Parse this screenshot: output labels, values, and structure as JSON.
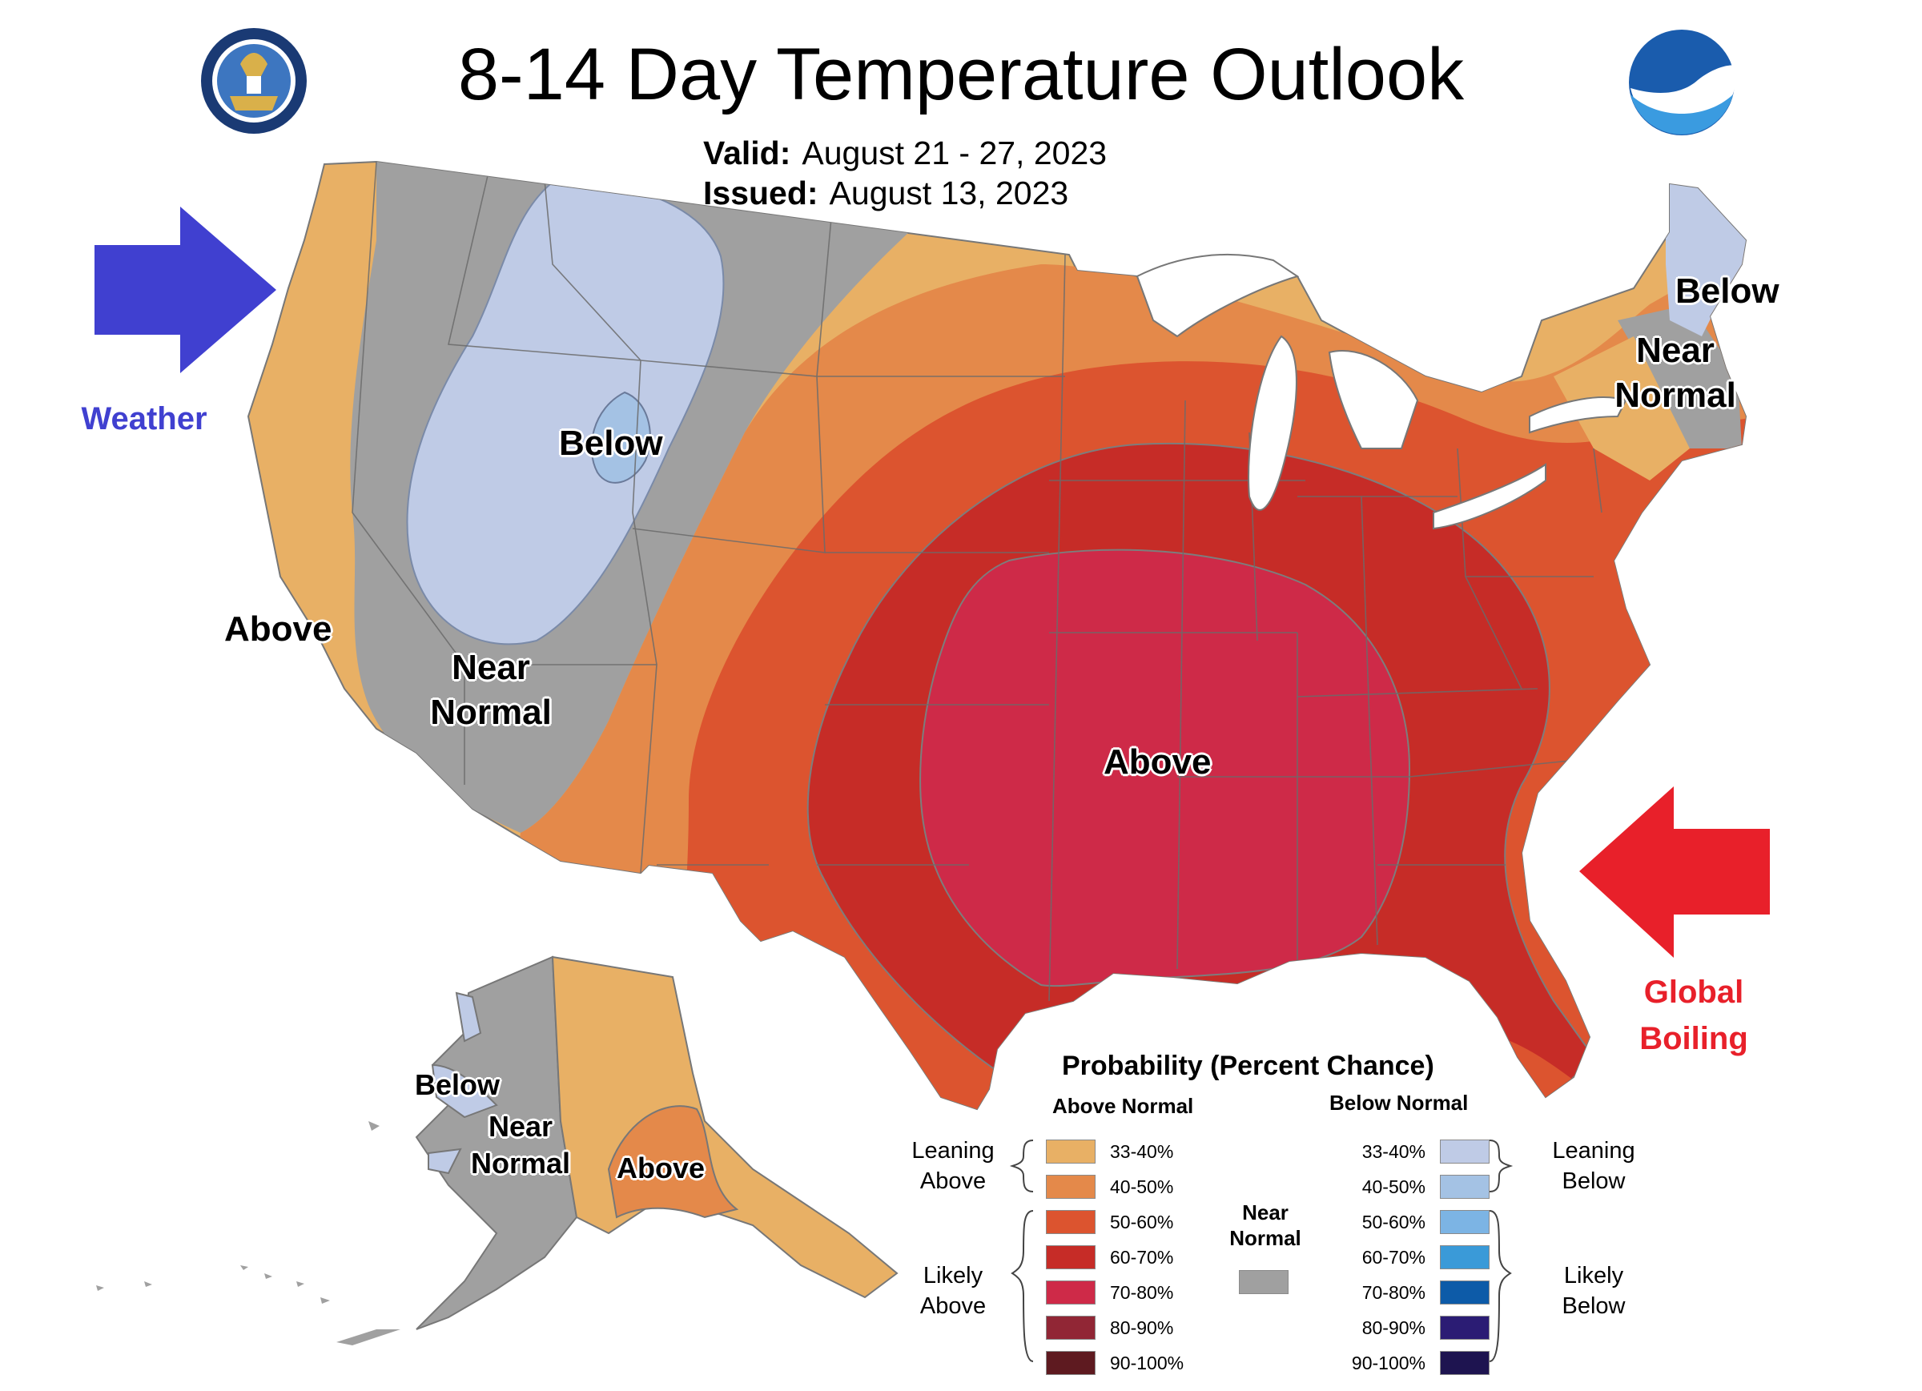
{
  "header": {
    "title": "8-14 Day Temperature Outlook",
    "valid_label": "Valid:",
    "valid_value": "August 21 - 27, 2023",
    "issued_label": "Issued:",
    "issued_value": "August 13, 2023"
  },
  "logos": {
    "left": "department-of-commerce-seal",
    "right": "noaa-logo"
  },
  "annotations": {
    "left_text": "Weather",
    "left_arrow_color": "#4040d0",
    "right_text_line1": "Global",
    "right_text_line2": "Boiling",
    "right_arrow_color": "#e8202a"
  },
  "map_labels": {
    "west_coast": "Above",
    "great_basin_line1": "Near",
    "great_basin_line2": "Normal",
    "northern_rockies": "Below",
    "central": "Above",
    "maine": "Below",
    "new_england_line1": "Near",
    "new_england_line2": "Normal",
    "alaska_west": "Below",
    "alaska_middle_line1": "Near",
    "alaska_middle_line2": "Normal",
    "alaska_south": "Above"
  },
  "legend": {
    "title": "Probability (Percent Chance)",
    "above_header": "Above Normal",
    "below_header": "Below Normal",
    "leaning_above_1": "Leaning",
    "leaning_above_2": "Above",
    "likely_above_1": "Likely",
    "likely_above_2": "Above",
    "leaning_below_1": "Leaning",
    "leaning_below_2": "Below",
    "likely_below_1": "Likely",
    "likely_below_2": "Below",
    "near_normal_1": "Near",
    "near_normal_2": "Normal",
    "near_normal_color": "#a0a0a0",
    "above": [
      {
        "range": "33-40%",
        "color": "#e8b065"
      },
      {
        "range": "40-50%",
        "color": "#e4894a"
      },
      {
        "range": "50-60%",
        "color": "#dc542f"
      },
      {
        "range": "60-70%",
        "color": "#c62c27"
      },
      {
        "range": "70-80%",
        "color": "#ce2a48"
      },
      {
        "range": "80-90%",
        "color": "#912635"
      },
      {
        "range": "90-100%",
        "color": "#5e1a20"
      }
    ],
    "below": [
      {
        "range": "33-40%",
        "color": "#bfcbe6"
      },
      {
        "range": "40-50%",
        "color": "#a4c2e4"
      },
      {
        "range": "50-60%",
        "color": "#7cb4e4"
      },
      {
        "range": "60-70%",
        "color": "#3a9ad8"
      },
      {
        "range": "70-80%",
        "color": "#0d5ba8"
      },
      {
        "range": "80-90%",
        "color": "#2b1c74"
      },
      {
        "range": "90-100%",
        "color": "#1e1450"
      }
    ]
  }
}
